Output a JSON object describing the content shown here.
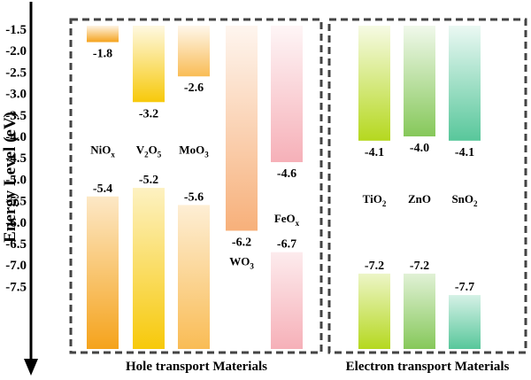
{
  "chart_data": {
    "type": "bar",
    "ylabel": "Energy Level (eV)",
    "ylim": [
      -1.5,
      -7.85
    ],
    "yticks": [
      "-1.5",
      "-2.0",
      "-2.5",
      "-3.0",
      "-3.5",
      "-4.0",
      "-4.5",
      "-5.0",
      "-5.5",
      "-6.0",
      "-6.5",
      "-7.0",
      "-7.5"
    ],
    "groups": [
      {
        "label": "Hole transport Materials",
        "materials": [
          {
            "name": "NiO",
            "sub": "x",
            "cb": -1.8,
            "vb": -5.4,
            "cb_label": "-1.8",
            "vb_label": "-5.4",
            "name_y": -4.3,
            "color": "#f5a31c"
          },
          {
            "name": "V",
            "sub": "2",
            "name2": "O",
            "sub2": "5",
            "cb": -3.2,
            "vb": -5.2,
            "cb_label": "-3.2",
            "vb_label": "-5.2",
            "name_y": -4.3,
            "color": "#f7c90a"
          },
          {
            "name": "MoO",
            "sub": "3",
            "cb": -2.6,
            "vb": -5.6,
            "cb_label": "-2.6",
            "vb_label": "-5.6",
            "name_y": -4.3,
            "color": "#f9bc55"
          },
          {
            "name": "WO",
            "sub": "3",
            "cb": -6.2,
            "vb": null,
            "cb_label": "-6.2",
            "vb_label": "",
            "name_y": -6.9,
            "color": "#f7b07a"
          },
          {
            "name": "FeO",
            "sub": "x",
            "cb": -4.6,
            "vb": -6.7,
            "cb_label": "-4.6",
            "vb_label": "-6.7",
            "name_y": -5.9,
            "color": "#f6b0b8"
          }
        ]
      },
      {
        "label": "Electron transport Materials",
        "materials": [
          {
            "name": "TiO",
            "sub": "2",
            "cb": -4.1,
            "vb": -7.2,
            "cb_label": "-4.1",
            "vb_label": "-7.2",
            "name_y": -5.45,
            "color": "#b5d81f"
          },
          {
            "name": "ZnO",
            "sub": "",
            "cb": -4.0,
            "vb": -7.2,
            "cb_label": "-4.0",
            "vb_label": "-7.2",
            "name_y": -5.45,
            "color": "#86c85a"
          },
          {
            "name": "SnO",
            "sub": "2",
            "cb": -4.1,
            "vb": -7.7,
            "cb_label": "-4.1",
            "vb_label": "-7.7",
            "name_y": -5.45,
            "color": "#58c79b"
          }
        ]
      }
    ],
    "legend": "none",
    "grid": false
  }
}
